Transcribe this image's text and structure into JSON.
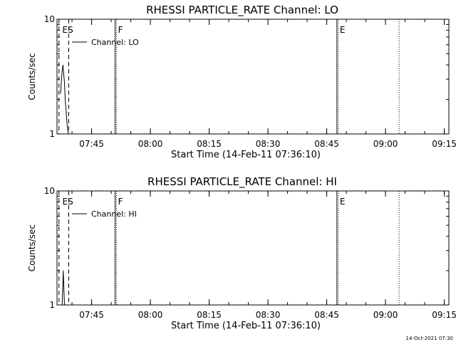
{
  "footer_timestamp": "14-Oct-2021 07:30",
  "chart_data": [
    {
      "type": "line",
      "title": "RHESSI PARTICLE_RATE Channel: LO",
      "xlabel": "Start Time (14-Feb-11 07:36:10)",
      "ylabel": "Counts/sec",
      "y_scale": "log",
      "ylim": [
        1,
        10
      ],
      "y_ticks": [
        {
          "value": 1,
          "label": "1"
        },
        {
          "value": 10,
          "label": "10"
        }
      ],
      "x_unit": "minutes since 07:36:10",
      "xlim": [
        0,
        100
      ],
      "x_ticks": [
        {
          "value": 8.83,
          "label": "07:45"
        },
        {
          "value": 23.83,
          "label": "08:00"
        },
        {
          "value": 38.83,
          "label": "08:15"
        },
        {
          "value": 53.83,
          "label": "08:30"
        },
        {
          "value": 68.83,
          "label": "08:45"
        },
        {
          "value": 83.83,
          "label": "09:00"
        },
        {
          "value": 98.83,
          "label": "09:15"
        }
      ],
      "legend": {
        "label": "Channel: LO",
        "placement": "top-left"
      },
      "series": [
        {
          "x": [
            0.9,
            1.1,
            1.3,
            1.5,
            1.7,
            1.9,
            2.1,
            2.3,
            2.5,
            2.7,
            2.8,
            2.9
          ],
          "y": [
            2.25,
            2.8,
            3.5,
            4.0,
            3.4,
            2.8,
            2.0,
            1.6,
            1.3,
            1.1,
            1.05,
            1.0
          ]
        }
      ],
      "markers": [
        {
          "x": 0.5,
          "style": "dashed",
          "label": ""
        },
        {
          "x": 3.0,
          "style": "dashed",
          "label": ""
        },
        {
          "x": 1.0,
          "style": "none",
          "label": "ES"
        },
        {
          "x": 15.2,
          "style": "dotted",
          "label": "F"
        },
        {
          "x": 71.8,
          "style": "dotted",
          "label": "E"
        },
        {
          "x": 87.3,
          "style": "dotted",
          "label": ""
        }
      ]
    },
    {
      "type": "line",
      "title": "RHESSI PARTICLE_RATE Channel: HI",
      "xlabel": "Start Time (14-Feb-11 07:36:10)",
      "ylabel": "Counts/sec",
      "y_scale": "log",
      "ylim": [
        1,
        10
      ],
      "y_ticks": [
        {
          "value": 1,
          "label": "1"
        },
        {
          "value": 10,
          "label": "10"
        }
      ],
      "x_unit": "minutes since 07:36:10",
      "xlim": [
        0,
        100
      ],
      "x_ticks": [
        {
          "value": 8.83,
          "label": "07:45"
        },
        {
          "value": 23.83,
          "label": "08:00"
        },
        {
          "value": 38.83,
          "label": "08:15"
        },
        {
          "value": 53.83,
          "label": "08:30"
        },
        {
          "value": 68.83,
          "label": "08:45"
        },
        {
          "value": 83.83,
          "label": "09:00"
        },
        {
          "value": 98.83,
          "label": "09:15"
        }
      ],
      "legend": {
        "label": "Channel: HI",
        "placement": "top-left"
      },
      "series": [
        {
          "x": [
            1.3,
            1.5,
            1.6,
            1.7,
            1.9
          ],
          "y": [
            1.0,
            1.6,
            2.0,
            1.6,
            1.0
          ]
        }
      ],
      "markers": [
        {
          "x": 0.5,
          "style": "dashed",
          "label": ""
        },
        {
          "x": 3.0,
          "style": "dashed",
          "label": ""
        },
        {
          "x": 1.0,
          "style": "none",
          "label": "ES"
        },
        {
          "x": 15.2,
          "style": "dotted",
          "label": "F"
        },
        {
          "x": 71.8,
          "style": "dotted",
          "label": "E"
        },
        {
          "x": 87.3,
          "style": "dotted",
          "label": ""
        }
      ]
    }
  ]
}
